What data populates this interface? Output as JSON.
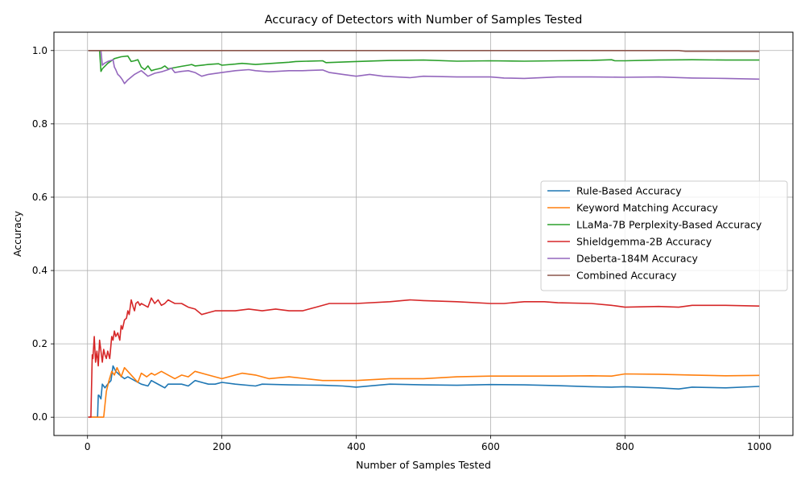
{
  "chart_data": {
    "type": "line",
    "title": "Accuracy of Detectors with Number of Samples Tested",
    "xlabel": "Number of Samples Tested",
    "ylabel": "Accuracy",
    "xlim": [
      -50,
      1050
    ],
    "ylim": [
      -0.05,
      1.05
    ],
    "xticks": [
      0,
      200,
      400,
      600,
      800,
      1000
    ],
    "xtick_labels": [
      "0",
      "200",
      "400",
      "600",
      "800",
      "1000"
    ],
    "yticks": [
      0.0,
      0.2,
      0.4,
      0.6,
      0.8,
      1.0
    ],
    "ytick_labels": [
      "0.0",
      "0.2",
      "0.4",
      "0.6",
      "0.8",
      "1.0"
    ],
    "grid": true,
    "legend_position": "center-right",
    "series": [
      {
        "name": "Rule-Based Accuracy",
        "color": "#1f77b4",
        "x": [
          1,
          15,
          16,
          17,
          20,
          22,
          24,
          26,
          30,
          35,
          38,
          42,
          48,
          55,
          60,
          70,
          80,
          90,
          95,
          100,
          110,
          115,
          120,
          140,
          150,
          160,
          180,
          190,
          200,
          220,
          250,
          260,
          300,
          350,
          380,
          400,
          450,
          500,
          550,
          600,
          650,
          700,
          750,
          780,
          800,
          850,
          880,
          900,
          950,
          1000
        ],
        "y": [
          0.0,
          0.0,
          0.06,
          0.06,
          0.05,
          0.09,
          0.085,
          0.08,
          0.09,
          0.1,
          0.14,
          0.125,
          0.115,
          0.105,
          0.11,
          0.1,
          0.09,
          0.085,
          0.1,
          0.095,
          0.085,
          0.08,
          0.09,
          0.09,
          0.085,
          0.1,
          0.09,
          0.09,
          0.095,
          0.09,
          0.085,
          0.09,
          0.088,
          0.087,
          0.085,
          0.082,
          0.09,
          0.088,
          0.087,
          0.089,
          0.088,
          0.086,
          0.083,
          0.082,
          0.083,
          0.08,
          0.077,
          0.082,
          0.08,
          0.084
        ]
      },
      {
        "name": "Keyword Matching Accuracy",
        "color": "#ff7f0e",
        "x": [
          1,
          20,
          24,
          28,
          32,
          36,
          40,
          44,
          50,
          55,
          60,
          70,
          75,
          80,
          88,
          95,
          100,
          110,
          120,
          130,
          140,
          150,
          160,
          180,
          200,
          220,
          230,
          250,
          270,
          300,
          350,
          400,
          450,
          500,
          550,
          600,
          650,
          700,
          750,
          780,
          800,
          850,
          900,
          950,
          1000
        ],
        "y": [
          0.0,
          0.0,
          0.0,
          0.07,
          0.1,
          0.125,
          0.115,
          0.135,
          0.11,
          0.135,
          0.125,
          0.105,
          0.095,
          0.12,
          0.11,
          0.12,
          0.115,
          0.125,
          0.115,
          0.105,
          0.115,
          0.11,
          0.125,
          0.115,
          0.105,
          0.115,
          0.12,
          0.115,
          0.105,
          0.11,
          0.1,
          0.1,
          0.105,
          0.105,
          0.11,
          0.112,
          0.112,
          0.112,
          0.113,
          0.112,
          0.118,
          0.117,
          0.115,
          0.113,
          0.114
        ]
      },
      {
        "name": "LLaMa-7B Perplexity-Based Accuracy",
        "color": "#2ca02c",
        "x": [
          1,
          15,
          18,
          20,
          22,
          30,
          40,
          50,
          60,
          65,
          70,
          75,
          80,
          85,
          90,
          95,
          100,
          110,
          115,
          120,
          140,
          150,
          155,
          160,
          180,
          195,
          200,
          220,
          230,
          250,
          300,
          310,
          350,
          355,
          400,
          450,
          500,
          550,
          600,
          650,
          700,
          750,
          780,
          785,
          800,
          850,
          900,
          950,
          1000
        ],
        "y": [
          1.0,
          1.0,
          1.0,
          0.943,
          0.95,
          0.965,
          0.978,
          0.983,
          0.985,
          0.97,
          0.972,
          0.975,
          0.955,
          0.948,
          0.958,
          0.945,
          0.948,
          0.952,
          0.958,
          0.95,
          0.957,
          0.96,
          0.962,
          0.958,
          0.962,
          0.964,
          0.96,
          0.963,
          0.965,
          0.962,
          0.968,
          0.97,
          0.972,
          0.967,
          0.97,
          0.973,
          0.974,
          0.971,
          0.972,
          0.971,
          0.972,
          0.973,
          0.975,
          0.972,
          0.972,
          0.974,
          0.975,
          0.974,
          0.974
        ]
      },
      {
        "name": "Shieldgemma-2B Accuracy",
        "color": "#d62728",
        "x": [
          1,
          5,
          7,
          8,
          10,
          12,
          14,
          16,
          18,
          20,
          22,
          24,
          26,
          28,
          30,
          33,
          36,
          38,
          40,
          42,
          45,
          48,
          50,
          52,
          55,
          58,
          60,
          62,
          65,
          68,
          70,
          72,
          75,
          78,
          80,
          85,
          90,
          95,
          100,
          105,
          110,
          115,
          120,
          125,
          130,
          140,
          150,
          160,
          170,
          180,
          190,
          200,
          220,
          240,
          260,
          280,
          300,
          320,
          340,
          360,
          380,
          400,
          450,
          480,
          500,
          550,
          600,
          620,
          650,
          680,
          700,
          750,
          780,
          800,
          850,
          880,
          900,
          950,
          1000
        ],
        "y": [
          0.0,
          0.0,
          0.17,
          0.16,
          0.22,
          0.15,
          0.18,
          0.14,
          0.21,
          0.18,
          0.15,
          0.185,
          0.17,
          0.16,
          0.18,
          0.16,
          0.22,
          0.21,
          0.235,
          0.22,
          0.23,
          0.21,
          0.25,
          0.24,
          0.265,
          0.27,
          0.29,
          0.28,
          0.32,
          0.3,
          0.29,
          0.31,
          0.315,
          0.305,
          0.31,
          0.305,
          0.3,
          0.325,
          0.31,
          0.32,
          0.305,
          0.31,
          0.32,
          0.315,
          0.31,
          0.31,
          0.3,
          0.295,
          0.28,
          0.285,
          0.29,
          0.29,
          0.29,
          0.295,
          0.29,
          0.295,
          0.29,
          0.29,
          0.3,
          0.31,
          0.31,
          0.31,
          0.315,
          0.32,
          0.318,
          0.315,
          0.31,
          0.31,
          0.315,
          0.315,
          0.312,
          0.31,
          0.305,
          0.3,
          0.302,
          0.3,
          0.305,
          0.305,
          0.303
        ]
      },
      {
        "name": "Deberta-184M Accuracy",
        "color": "#9467bd",
        "x": [
          1,
          20,
          22,
          25,
          30,
          38,
          40,
          42,
          45,
          48,
          50,
          52,
          55,
          60,
          70,
          75,
          80,
          90,
          100,
          110,
          120,
          125,
          130,
          140,
          150,
          160,
          165,
          170,
          180,
          200,
          220,
          240,
          250,
          270,
          300,
          320,
          350,
          360,
          380,
          400,
          420,
          440,
          460,
          480,
          500,
          550,
          600,
          620,
          650,
          700,
          750,
          800,
          850,
          900,
          950,
          1000
        ],
        "y": [
          1.0,
          1.0,
          0.96,
          0.965,
          0.97,
          0.975,
          0.955,
          0.948,
          0.935,
          0.93,
          0.925,
          0.92,
          0.91,
          0.92,
          0.935,
          0.94,
          0.945,
          0.93,
          0.938,
          0.942,
          0.948,
          0.952,
          0.94,
          0.943,
          0.945,
          0.94,
          0.935,
          0.93,
          0.935,
          0.94,
          0.945,
          0.948,
          0.945,
          0.942,
          0.945,
          0.945,
          0.947,
          0.94,
          0.935,
          0.93,
          0.935,
          0.93,
          0.928,
          0.926,
          0.93,
          0.928,
          0.928,
          0.925,
          0.924,
          0.928,
          0.928,
          0.927,
          0.928,
          0.925,
          0.924,
          0.922
        ]
      },
      {
        "name": "Combined Accuracy",
        "color": "#8c564b",
        "x": [
          1,
          200,
          400,
          600,
          800,
          880,
          890,
          1000
        ],
        "y": [
          1.0,
          1.0,
          1.0,
          1.0,
          1.0,
          1.0,
          0.998,
          0.998
        ]
      }
    ]
  }
}
